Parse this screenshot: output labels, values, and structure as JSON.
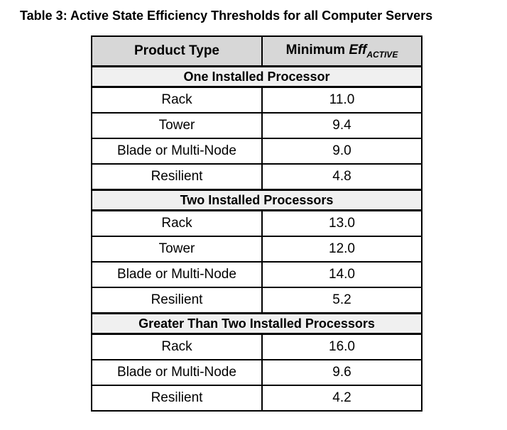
{
  "page": {
    "title": "Table 3: Active State Efficiency Thresholds for all Computer Servers"
  },
  "table": {
    "columns": {
      "product_type": {
        "label": "Product Type"
      },
      "minimum_eff": {
        "prefix": "Minimum ",
        "symbol": "Eff",
        "subscript": "ACTIVE"
      }
    },
    "colors": {
      "header_bg": "#d7d7d7",
      "section_bg": "#f0f0f0",
      "border": "#000000",
      "text": "#000000"
    },
    "sections": [
      {
        "header": "One Installed Processor",
        "rows": [
          {
            "product_type": "Rack",
            "minimum_eff": "11.0"
          },
          {
            "product_type": "Tower",
            "minimum_eff": "9.4"
          },
          {
            "product_type": "Blade or Multi-Node",
            "minimum_eff": "9.0"
          },
          {
            "product_type": "Resilient",
            "minimum_eff": "4.8"
          }
        ]
      },
      {
        "header": "Two Installed Processors",
        "rows": [
          {
            "product_type": "Rack",
            "minimum_eff": "13.0"
          },
          {
            "product_type": "Tower",
            "minimum_eff": "12.0"
          },
          {
            "product_type": "Blade or Multi-Node",
            "minimum_eff": "14.0"
          },
          {
            "product_type": "Resilient",
            "minimum_eff": "5.2"
          }
        ]
      },
      {
        "header": "Greater Than Two Installed Processors",
        "rows": [
          {
            "product_type": "Rack",
            "minimum_eff": "16.0"
          },
          {
            "product_type": "Blade or Multi-Node",
            "minimum_eff": "9.6"
          },
          {
            "product_type": "Resilient",
            "minimum_eff": "4.2"
          }
        ]
      }
    ]
  }
}
